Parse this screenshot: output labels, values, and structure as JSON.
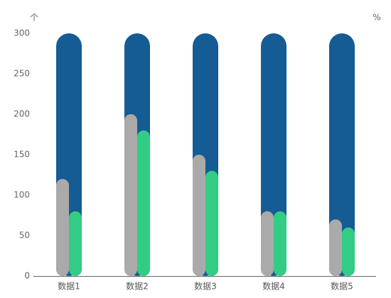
{
  "chart_data": {
    "type": "bar",
    "y_label": "个",
    "y2_label": "%",
    "categories": [
      "数据1",
      "数据2",
      "数据3",
      "数据4",
      "数据5"
    ],
    "series": [
      {
        "color": "#155b94",
        "values": [
          300,
          300,
          300,
          300,
          300
        ]
      },
      {
        "color": "#aaaaaa",
        "values": [
          120,
          200,
          150,
          80,
          70
        ]
      },
      {
        "color": "#33cc85",
        "values": [
          80,
          180,
          130,
          80,
          60
        ]
      }
    ],
    "ylim": [
      0,
      300
    ],
    "yticks": [
      0,
      50,
      100,
      150,
      200,
      250,
      300
    ]
  }
}
